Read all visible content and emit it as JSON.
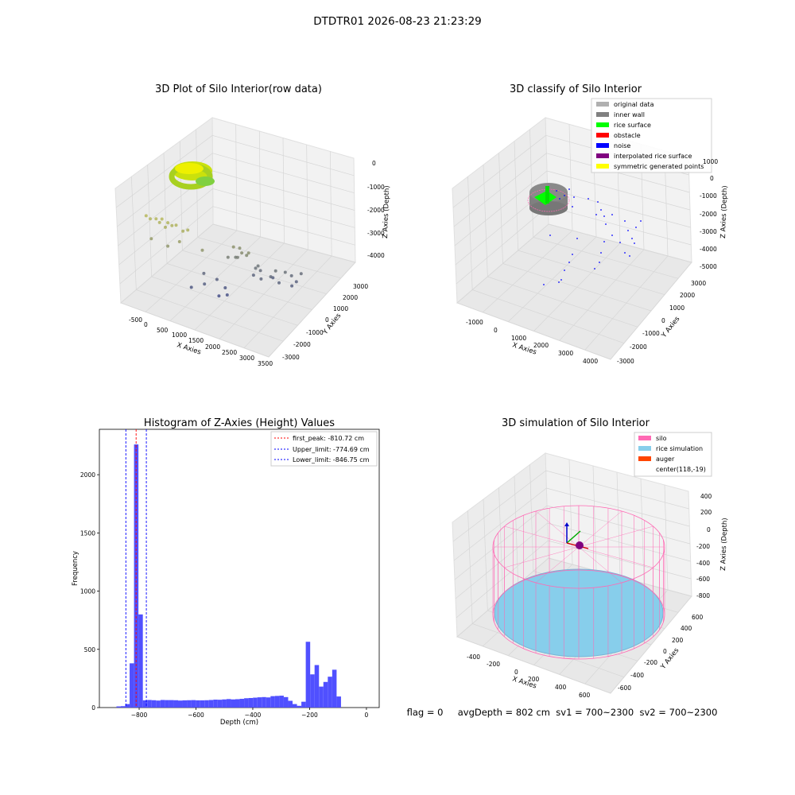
{
  "suptitle": "DTDTR01 2026-08-23 21:23:29",
  "footer": "flag = 0     avgDepth = 802 cm  sv1 = 700~2300  sv2 = 700~2300",
  "colors": {
    "wall_gray": "#808080",
    "rice_green": "#00ff00",
    "obstacle_red": "#ff0000",
    "noise_blue": "#0000ff",
    "interp_purple": "#800080",
    "sym_yellow": "#ffff00",
    "original_gray": "#b0b0b0",
    "hist_blue": "#5050ff",
    "silo_pink": "#ff69b4",
    "rice_sim": "#87ceeb",
    "auger": "#ff4500"
  },
  "chart_data": [
    {
      "type": "scatter",
      "title": "3D Plot of Silo Interior(row data)",
      "xlabel": "X Axies",
      "ylabel": "Y Axies",
      "zlabel": "Z Axies (Depth)",
      "xticks": [
        "-500",
        "0",
        "500",
        "1000",
        "1500",
        "2000",
        "2500",
        "3000",
        "3500"
      ],
      "yticks": [
        "-3000",
        "-2000",
        "-1000",
        "0",
        "1000",
        "2000",
        "3000"
      ],
      "zticks": [
        "0",
        "-1000",
        "-2000",
        "-3000",
        "-4000"
      ],
      "xlim": [
        -700,
        3600
      ],
      "ylim": [
        -3200,
        3400
      ],
      "zlim": [
        -4500,
        200
      ],
      "grid": true,
      "points": [
        [
          -250,
          -2500,
          -900
        ],
        [
          -150,
          -2450,
          -1000
        ],
        [
          0,
          -2400,
          -950
        ],
        [
          100,
          -2400,
          -1050
        ],
        [
          150,
          -2350,
          -900
        ],
        [
          300,
          -2300,
          -1000
        ],
        [
          400,
          -2250,
          -1100
        ],
        [
          500,
          -2200,
          -1050
        ],
        [
          250,
          -2350,
          -1200
        ],
        [
          700,
          -2200,
          -1200
        ],
        [
          800,
          -2100,
          -1150
        ],
        [
          -100,
          -2500,
          -1800
        ],
        [
          300,
          -2300,
          -2000
        ],
        [
          600,
          -2200,
          -1700
        ],
        [
          1100,
          -1800,
          -2000
        ],
        [
          1600,
          -800,
          -2100
        ],
        [
          1800,
          -700,
          -2300
        ],
        [
          1900,
          -600,
          -2400
        ],
        [
          2000,
          -700,
          -2200
        ],
        [
          1700,
          -600,
          -2200
        ],
        [
          1400,
          -700,
          -2700
        ],
        [
          1500,
          -400,
          -2800
        ],
        [
          1600,
          -500,
          -2700
        ],
        [
          2000,
          -200,
          -3100
        ],
        [
          2050,
          -150,
          -3000
        ],
        [
          2100,
          -100,
          -3200
        ],
        [
          2200,
          -300,
          -3400
        ],
        [
          1900,
          -100,
          -3500
        ],
        [
          2400,
          -100,
          -3300
        ],
        [
          2500,
          0,
          -3050
        ],
        [
          2700,
          200,
          -3100
        ],
        [
          2800,
          400,
          -3300
        ],
        [
          2900,
          500,
          -3550
        ],
        [
          2850,
          300,
          -3650
        ],
        [
          3000,
          600,
          -3200
        ],
        [
          2600,
          0,
          -3500
        ],
        [
          2300,
          300,
          -3600
        ],
        [
          900,
          -1200,
          -3400
        ],
        [
          1200,
          -1000,
          -3600
        ],
        [
          1400,
          -900,
          -3900
        ],
        [
          1500,
          -1000,
          -4100
        ],
        [
          1300,
          -1100,
          -4200
        ],
        [
          1000,
          -1400,
          -3700
        ],
        [
          700,
          -1600,
          -3900
        ]
      ]
    },
    {
      "type": "scatter",
      "title": "3D classify of Silo Interior",
      "xlabel": "X Axies",
      "ylabel": "Y Axies",
      "zlabel": "Z Axies (Depth)",
      "xticks": [
        "-1000",
        "0",
        "1000",
        "2000",
        "3000",
        "4000"
      ],
      "yticks": [
        "-3000",
        "-2000",
        "-1000",
        "0",
        "1000",
        "2000",
        "3000"
      ],
      "zticks": [
        "1000",
        "0",
        "-1000",
        "-2000",
        "-3000",
        "-4000",
        "-5000"
      ],
      "xlim": [
        -1500,
        4500
      ],
      "ylim": [
        -3200,
        3400
      ],
      "zlim": [
        -5500,
        1200
      ],
      "grid": true,
      "legend": [
        "original data",
        "inner wall",
        "rice surface",
        "obstacle",
        "noise",
        "interpolated rice surface",
        "symmetric generated points"
      ],
      "legend_loc": "upper right"
    },
    {
      "type": "bar",
      "title": "Histogram of Z-Axies (Height) Values",
      "xlabel": "Depth (cm)",
      "ylabel": "Frequency",
      "xticks": [
        "-800",
        "-600",
        "-400",
        "-200",
        "0"
      ],
      "yticks": [
        "0",
        "500",
        "1000",
        "1500",
        "2000"
      ],
      "xlim": [
        -940,
        45
      ],
      "ylim": [
        0,
        2390
      ],
      "bin_width": 15.5,
      "bin_start": -880,
      "values": [
        10,
        12,
        30,
        380,
        2260,
        800,
        62,
        65,
        63,
        60,
        65,
        64,
        64,
        63,
        60,
        62,
        63,
        64,
        62,
        62,
        63,
        65,
        68,
        67,
        70,
        73,
        70,
        72,
        75,
        80,
        82,
        85,
        88,
        90,
        87,
        98,
        100,
        102,
        90,
        58,
        30,
        15,
        50,
        565,
        285,
        365,
        180,
        220,
        265,
        325,
        95
      ],
      "lines": [
        {
          "label": "first_peak: -810.72 cm",
          "x": -810.72
        },
        {
          "label": "Upper_limit: -774.69 cm",
          "x": -774.69
        },
        {
          "label": "Lower_limit: -846.75 cm",
          "x": -846.75
        }
      ],
      "legend_loc": "upper right"
    },
    {
      "type": "scatter",
      "title": "3D simulation of Silo Interior",
      "xlabel": "X Axies",
      "ylabel": "Y Axies",
      "zlabel": "Z Axies (Depth)",
      "xticks": [
        "-400",
        "-200",
        "0",
        "200",
        "400",
        "600"
      ],
      "yticks": [
        "-600",
        "-400",
        "-200",
        "0",
        "200",
        "400",
        "600"
      ],
      "zticks": [
        "400",
        "200",
        "0",
        "-200",
        "-400",
        "-600",
        "-800"
      ],
      "grid": true,
      "legend": [
        "silo",
        "rice simulation",
        "auger",
        "center(118,-19)"
      ],
      "legend_loc": "upper right"
    }
  ]
}
